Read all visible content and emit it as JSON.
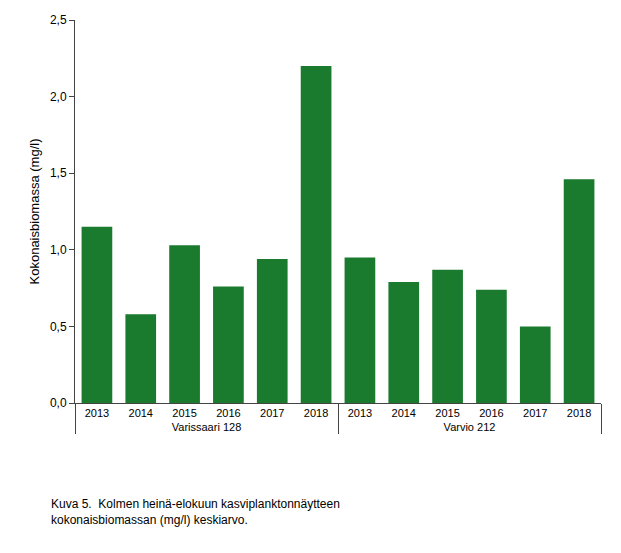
{
  "chart_data": {
    "type": "bar",
    "category_groups": [
      "Varissaari 128",
      "Varissaari 128",
      "Varissaari 128",
      "Varissaari 128",
      "Varissaari 128",
      "Varissaari 128",
      "Varvio 212",
      "Varvio 212",
      "Varvio 212",
      "Varvio 212",
      "Varvio 212",
      "Varvio 212"
    ],
    "categories": [
      "2013",
      "2014",
      "2015",
      "2016",
      "2017",
      "2018",
      "2013",
      "2014",
      "2015",
      "2016",
      "2017",
      "2018"
    ],
    "values": [
      1.15,
      0.58,
      1.03,
      0.76,
      0.94,
      2.2,
      0.95,
      0.79,
      0.87,
      0.74,
      0.5,
      1.46
    ],
    "color": "#1a7a2e",
    "ylabel": "Kokonaisbiomassa (mg/l)",
    "ylim": [
      0,
      2.5
    ],
    "yticks": [
      {
        "value": 0.0,
        "label": "0,0"
      },
      {
        "value": 0.5,
        "label": "0,5"
      },
      {
        "value": 1.0,
        "label": "1,0"
      },
      {
        "value": 1.5,
        "label": "1,5"
      },
      {
        "value": 2.0,
        "label": "2,0"
      },
      {
        "value": 2.5,
        "label": "2,5"
      }
    ],
    "caption_lines": [
      "Kuva 5.  Kolmen heinä-elokuun kasviplanktonnäytteen",
      "kokonaisbiomassan (mg/l) keskiarvo."
    ],
    "grid": false
  }
}
